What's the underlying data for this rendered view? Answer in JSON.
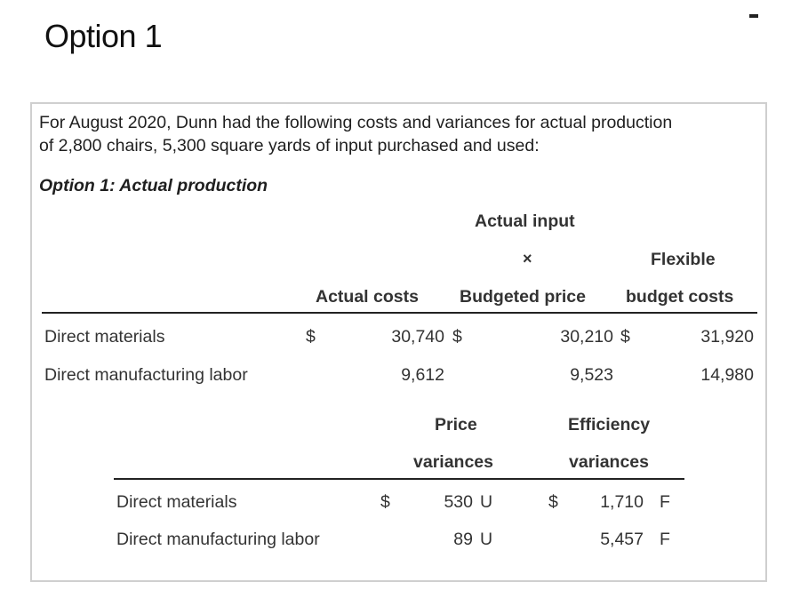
{
  "page": {
    "title": "Option 1"
  },
  "intro": {
    "line1": "For August 2020, Dunn had the following costs and variances for actual production",
    "line2": "of 2,800 chairs, 5,300 square yards of input purchased and used:"
  },
  "subheading": "Option 1: Actual production",
  "cost_table": {
    "headers": {
      "actual_input": "Actual input",
      "times": "×",
      "flexible": "Flexible",
      "actual_costs": "Actual costs",
      "budgeted_price": "Budgeted price",
      "budget_costs": "budget costs"
    },
    "rows": [
      {
        "label": "Direct materials",
        "cur1": "$",
        "actual_costs": "30,740",
        "cur2": "$",
        "budgeted": "30,210",
        "cur3": "$",
        "flexible": "31,920"
      },
      {
        "label": "Direct manufacturing labor",
        "actual_costs": "9,612",
        "budgeted": "9,523",
        "flexible": "14,980"
      }
    ]
  },
  "variance_table": {
    "headers": {
      "price": "Price",
      "efficiency": "Efficiency",
      "price_sub": "variances",
      "efficiency_sub": "variances"
    },
    "rows": [
      {
        "label": "Direct materials",
        "cur1": "$",
        "price": "530",
        "price_flag": "U",
        "cur2": "$",
        "efficiency": "1,710",
        "efficiency_flag": "F"
      },
      {
        "label": "Direct manufacturing labor",
        "price": "89",
        "price_flag": "U",
        "efficiency": "5,457",
        "efficiency_flag": "F"
      }
    ]
  }
}
